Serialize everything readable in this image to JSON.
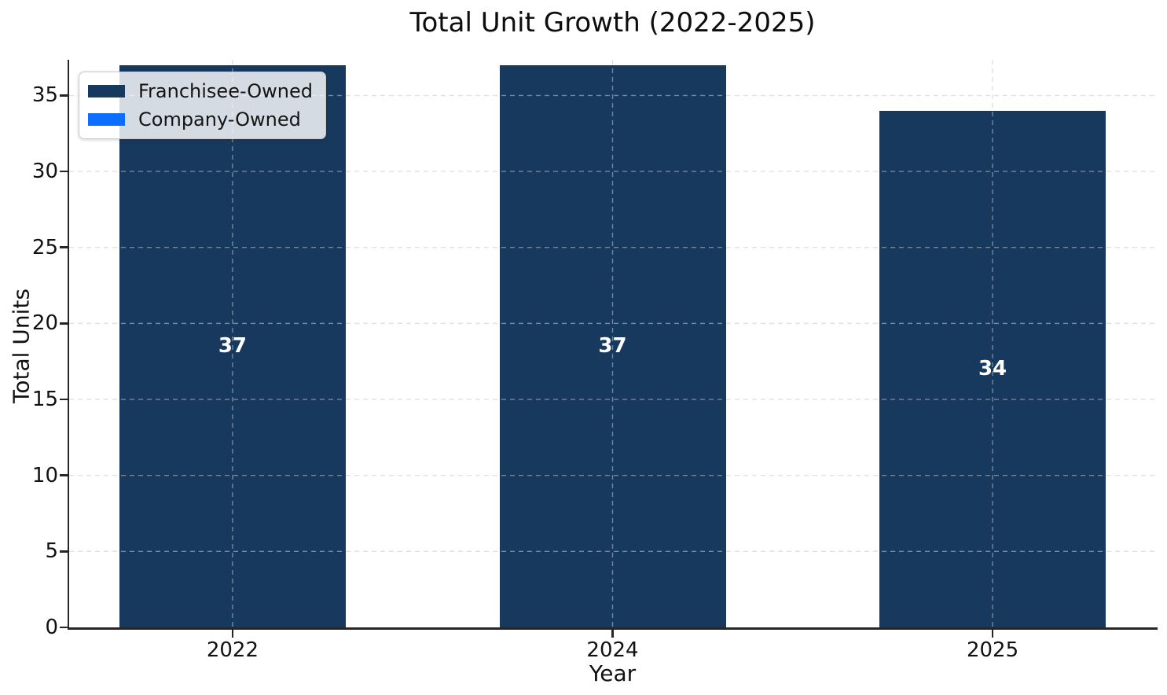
{
  "figure": {
    "background": "#ffffff"
  },
  "chart_data": {
    "type": "bar",
    "stacked": true,
    "title": "Total Unit Growth (2022-2025)",
    "xlabel": "Year",
    "ylabel": "Total Units",
    "categories": [
      "2022",
      "2024",
      "2025"
    ],
    "series": [
      {
        "name": "Franchisee-Owned",
        "color": "#17395E",
        "values": [
          37,
          37,
          34
        ]
      },
      {
        "name": "Company-Owned",
        "color": "#0D6EFD",
        "values": [
          0,
          0,
          0
        ]
      }
    ],
    "bar_total_labels": [
      "37",
      "37",
      "34"
    ],
    "bar_label_color": "#ffffff",
    "yticks": [
      0,
      5,
      10,
      15,
      20,
      25,
      30,
      35
    ],
    "ylim": [
      0,
      37.35
    ],
    "grid": "dashed",
    "grid_color": "#c4c9ce",
    "legend_position": "upper-left",
    "axis_color": "#262626"
  }
}
